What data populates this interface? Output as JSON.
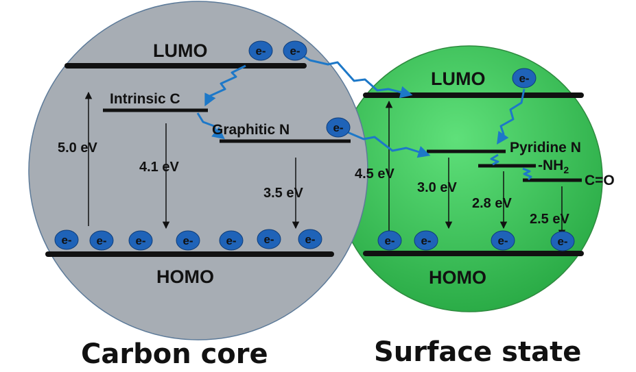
{
  "core": {
    "caption": "Carbon core",
    "lumo": "LUMO",
    "homo": "HOMO",
    "intrinsic": "Intrinsic C",
    "graphitic": "Graphitic N",
    "gaps": [
      "5.0 eV",
      "4.1 eV",
      "3.5 eV"
    ]
  },
  "surface": {
    "caption": "Surface state",
    "lumo": "LUMO",
    "homo": "HOMO",
    "pyridine": "Pyridine N",
    "nh2_main": "-NH",
    "nh2_sub": "2",
    "co": "C=O",
    "gaps": [
      "4.5 eV",
      "3.0 eV",
      "2.8 eV",
      "2.5 eV"
    ]
  },
  "electron": "e-",
  "colors": {
    "core_fill": "#a7adb4",
    "surface_fill": "#4ccf62",
    "electron": "#1f63b8",
    "transfer_path": "#1d78c8",
    "level_line": "#111111"
  }
}
